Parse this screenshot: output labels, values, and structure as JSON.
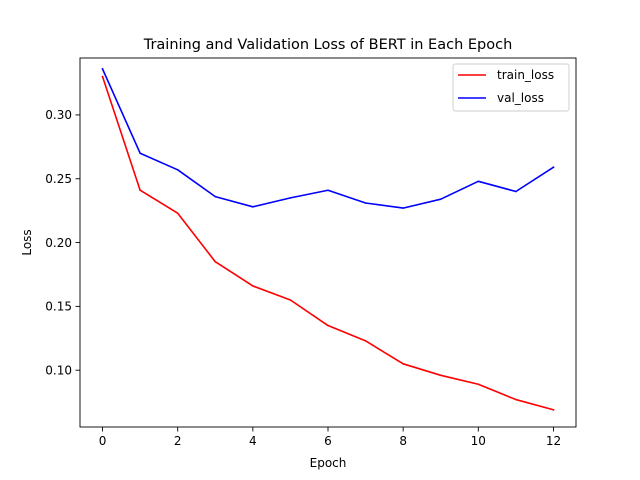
{
  "chart_data": {
    "type": "line",
    "title": "Training and Validation Loss of BERT in Each Epoch",
    "xlabel": "Epoch",
    "ylabel": "Loss",
    "x": [
      0,
      1,
      2,
      3,
      4,
      5,
      6,
      7,
      8,
      9,
      10,
      11,
      12
    ],
    "xlim": [
      -0.6,
      12.6
    ],
    "ylim": [
      0.0555,
      0.3446
    ],
    "xticks": [
      0,
      2,
      4,
      6,
      8,
      10,
      12
    ],
    "yticks": [
      0.1,
      0.15,
      0.2,
      0.25,
      0.3
    ],
    "ytick_labels": [
      "0.10",
      "0.15",
      "0.20",
      "0.25",
      "0.30"
    ],
    "grid": false,
    "legend_position": "top-right",
    "series": [
      {
        "name": "train_loss",
        "color": "#ff0000",
        "values": [
          0.33,
          0.241,
          0.223,
          0.185,
          0.166,
          0.155,
          0.135,
          0.123,
          0.105,
          0.096,
          0.089,
          0.077,
          0.069
        ]
      },
      {
        "name": "val_loss",
        "color": "#0000ff",
        "values": [
          0.336,
          0.27,
          0.257,
          0.236,
          0.228,
          0.235,
          0.241,
          0.231,
          0.227,
          0.234,
          0.248,
          0.24,
          0.259
        ]
      }
    ]
  }
}
